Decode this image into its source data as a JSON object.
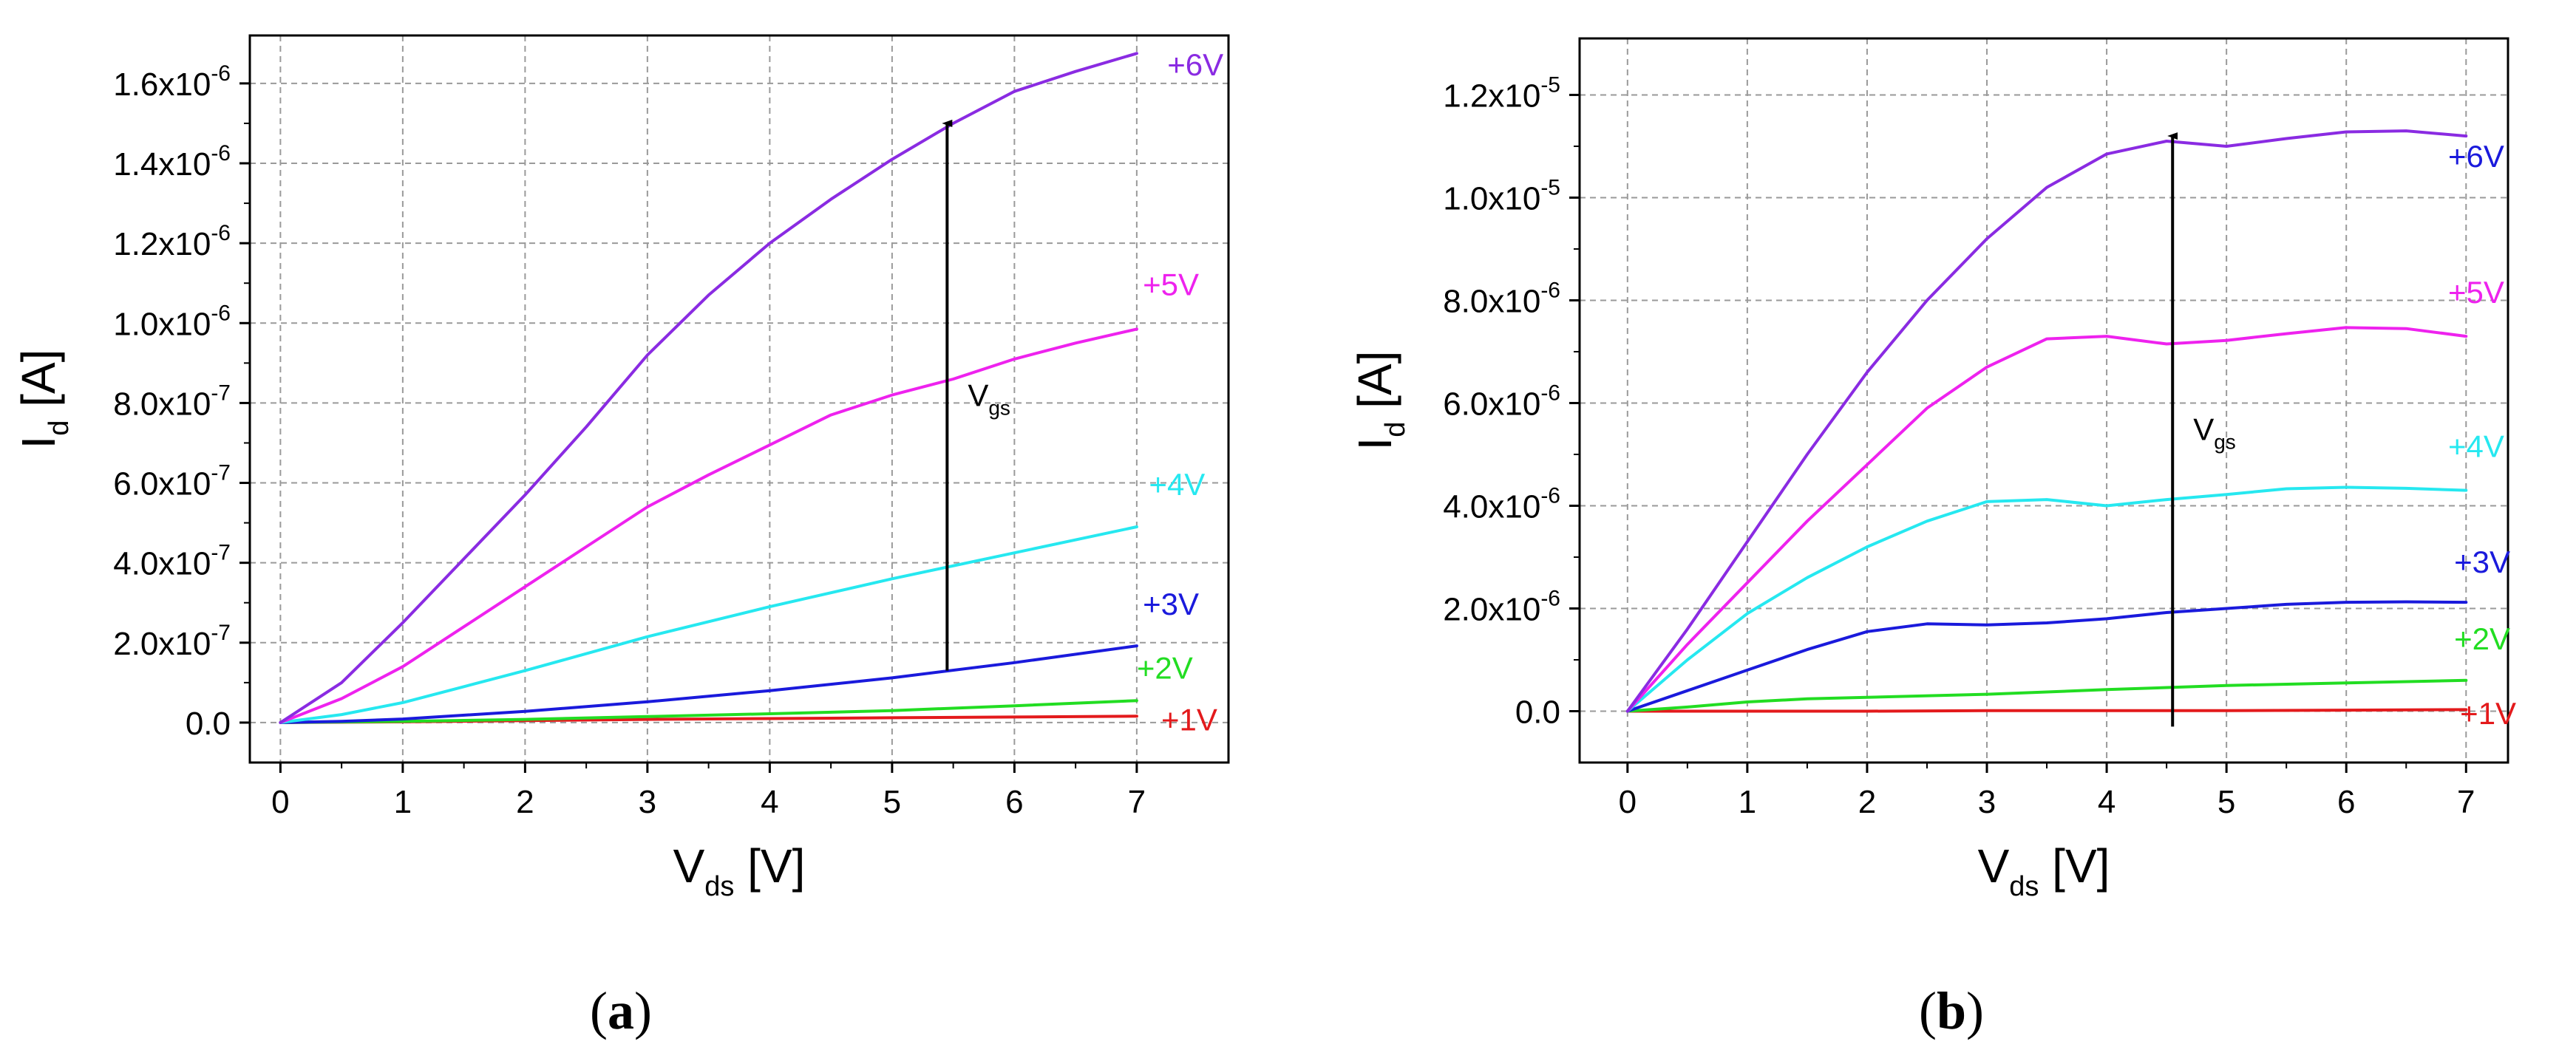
{
  "chart_data": [
    {
      "id": "a",
      "type": "line",
      "caption": "(a)",
      "xlabel": "V",
      "xlabel_sub": "ds",
      "xlabel_unit": " [V]",
      "ylabel": "I",
      "ylabel_sub": "d",
      "ylabel_unit": " [A]",
      "xlim": [
        -0.25,
        7.75
      ],
      "ylim": [
        -1e-07,
        1.72e-06
      ],
      "grid": true,
      "xticks": [
        0,
        1,
        2,
        3,
        4,
        5,
        6,
        7
      ],
      "yticks": [
        {
          "value": 0,
          "mant": "0.0",
          "exp": ""
        },
        {
          "value": 2e-07,
          "mant": "2.0x10",
          "exp": "-7"
        },
        {
          "value": 4e-07,
          "mant": "4.0x10",
          "exp": "-7"
        },
        {
          "value": 6e-07,
          "mant": "6.0x10",
          "exp": "-7"
        },
        {
          "value": 8e-07,
          "mant": "8.0x10",
          "exp": "-7"
        },
        {
          "value": 1e-06,
          "mant": "1.0x10",
          "exp": "-6"
        },
        {
          "value": 1.2e-06,
          "mant": "1.2x10",
          "exp": "-6"
        },
        {
          "value": 1.4e-06,
          "mant": "1.4x10",
          "exp": "-6"
        },
        {
          "value": 1.6e-06,
          "mant": "1.6x10",
          "exp": "-6"
        }
      ],
      "arrow": {
        "x": 5.45,
        "y_start": 1.3e-07,
        "y_end": 1.5e-06,
        "label": "V",
        "label_sub": "gs"
      },
      "series": [
        {
          "name": "+1V",
          "color": "#e31a1c",
          "label_pos": [
            7.2,
            -2e-08
          ],
          "x": [
            0,
            1,
            2,
            3,
            4,
            5,
            6,
            7
          ],
          "y": [
            0,
            2e-09,
            5e-09,
            8e-09,
            1e-08,
            1.2e-08,
            1.4e-08,
            1.6e-08
          ]
        },
        {
          "name": "+2V",
          "color": "#22dd22",
          "label_pos": [
            7.0,
            1.1e-07
          ],
          "x": [
            0,
            1,
            2,
            3,
            4,
            5,
            6,
            7
          ],
          "y": [
            0,
            3e-09,
            8e-09,
            1.5e-08,
            2.2e-08,
            3e-08,
            4.2e-08,
            5.5e-08
          ]
        },
        {
          "name": "+3V",
          "color": "#1a1adc",
          "label_pos": [
            7.05,
            2.7e-07
          ],
          "x": [
            0,
            0.5,
            1,
            2,
            3,
            4,
            5,
            6,
            7
          ],
          "y": [
            0,
            3e-09,
            9e-09,
            2.8e-08,
            5.2e-08,
            8e-08,
            1.12e-07,
            1.5e-07,
            1.92e-07
          ]
        },
        {
          "name": "+4V",
          "color": "#26e8f0",
          "label_pos": [
            7.1,
            5.7e-07
          ],
          "x": [
            0,
            0.5,
            1,
            1.5,
            2,
            3,
            4,
            5,
            6,
            7
          ],
          "y": [
            0,
            2e-08,
            5e-08,
            9e-08,
            1.3e-07,
            2.15e-07,
            2.9e-07,
            3.6e-07,
            4.25e-07,
            4.9e-07
          ]
        },
        {
          "name": "+5V",
          "color": "#ee22ee",
          "label_pos": [
            7.05,
            1.07e-06
          ],
          "x": [
            0,
            0.5,
            1,
            1.5,
            2,
            2.5,
            3,
            3.5,
            4,
            4.5,
            5,
            5.5,
            6,
            6.5,
            7
          ],
          "y": [
            0,
            6e-08,
            1.4e-07,
            2.4e-07,
            3.4e-07,
            4.4e-07,
            5.4e-07,
            6.2e-07,
            6.95e-07,
            7.7e-07,
            8.2e-07,
            8.6e-07,
            9.1e-07,
            9.5e-07,
            9.85e-07
          ]
        },
        {
          "name": "+6V",
          "color": "#8a2be2",
          "label_pos": [
            7.25,
            1.62e-06
          ],
          "x": [
            0,
            0.5,
            1,
            1.5,
            2,
            2.5,
            3,
            3.5,
            4,
            4.5,
            5,
            5.5,
            6,
            6.5,
            7
          ],
          "y": [
            0,
            1e-07,
            2.5e-07,
            4.1e-07,
            5.7e-07,
            7.4e-07,
            9.2e-07,
            1.07e-06,
            1.2e-06,
            1.31e-06,
            1.41e-06,
            1.5e-06,
            1.58e-06,
            1.63e-06,
            1.675e-06
          ]
        }
      ]
    },
    {
      "id": "b",
      "type": "line",
      "caption": "(b)",
      "xlabel": "V",
      "xlabel_sub": "ds",
      "xlabel_unit": " [V]",
      "ylabel": "I",
      "ylabel_sub": "d",
      "ylabel_unit": " [A]",
      "xlim": [
        -0.4,
        7.35
      ],
      "ylim": [
        -1e-06,
        1.31e-05
      ],
      "grid": true,
      "xticks": [
        0,
        1,
        2,
        3,
        4,
        5,
        6,
        7
      ],
      "yticks": [
        {
          "value": 0,
          "mant": "0.0",
          "exp": ""
        },
        {
          "value": 2e-06,
          "mant": "2.0x10",
          "exp": "-6"
        },
        {
          "value": 4e-06,
          "mant": "4.0x10",
          "exp": "-6"
        },
        {
          "value": 6e-06,
          "mant": "6.0x10",
          "exp": "-6"
        },
        {
          "value": 8e-06,
          "mant": "8.0x10",
          "exp": "-6"
        },
        {
          "value": 1e-05,
          "mant": "1.0x10",
          "exp": "-5"
        },
        {
          "value": 1.2e-05,
          "mant": "1.2x10",
          "exp": "-5"
        }
      ],
      "arrow": {
        "x": 4.55,
        "y_start": -3e-07,
        "y_end": 1.12e-05,
        "label": "V",
        "label_sub": "gs"
      },
      "series": [
        {
          "name": "+1V",
          "color": "#e31a1c",
          "label_pos": [
            6.95,
            -2.5e-07
          ],
          "x": [
            0,
            1,
            2,
            3,
            4,
            5,
            6,
            7
          ],
          "y": [
            0,
            0,
            0,
            1e-08,
            1e-08,
            1e-08,
            2e-08,
            3e-08
          ]
        },
        {
          "name": "+2V",
          "color": "#22dd22",
          "label_pos": [
            6.9,
            1.2e-06
          ],
          "x": [
            0,
            0.5,
            1,
            1.5,
            2,
            3,
            4,
            5,
            6,
            7
          ],
          "y": [
            0,
            8e-08,
            1.8e-07,
            2.4e-07,
            2.7e-07,
            3.3e-07,
            4.2e-07,
            5e-07,
            5.5e-07,
            6e-07
          ]
        },
        {
          "name": "+3V",
          "color": "#1a1adc",
          "label_pos": [
            6.9,
            2.7e-06
          ],
          "x": [
            0,
            0.5,
            1,
            1.5,
            2,
            2.5,
            3,
            3.5,
            4,
            4.5,
            5,
            5.5,
            6,
            6.5,
            7
          ],
          "y": [
            0,
            4e-07,
            8e-07,
            1.2e-06,
            1.55e-06,
            1.7e-06,
            1.68e-06,
            1.72e-06,
            1.8e-06,
            1.92e-06,
            2e-06,
            2.08e-06,
            2.12e-06,
            2.13e-06,
            2.12e-06
          ]
        },
        {
          "name": "+4V",
          "color": "#26e8f0",
          "label_pos": [
            6.85,
            4.95e-06
          ],
          "x": [
            0,
            0.5,
            1,
            1.5,
            2,
            2.5,
            3,
            3.5,
            4,
            4.5,
            5,
            5.5,
            6,
            6.5,
            7
          ],
          "y": [
            0,
            1e-06,
            1.9e-06,
            2.6e-06,
            3.2e-06,
            3.7e-06,
            4.08e-06,
            4.12e-06,
            4e-06,
            4.12e-06,
            4.22e-06,
            4.33e-06,
            4.36e-06,
            4.34e-06,
            4.3e-06
          ]
        },
        {
          "name": "+5V",
          "color": "#ee22ee",
          "label_pos": [
            6.85,
            7.95e-06
          ],
          "x": [
            0,
            0.5,
            1,
            1.5,
            2,
            2.5,
            3,
            3.5,
            4,
            4.5,
            5,
            5.5,
            6,
            6.5,
            7
          ],
          "y": [
            0,
            1.3e-06,
            2.5e-06,
            3.7e-06,
            4.8e-06,
            5.9e-06,
            6.7e-06,
            7.25e-06,
            7.3e-06,
            7.15e-06,
            7.22e-06,
            7.35e-06,
            7.47e-06,
            7.45e-06,
            7.3e-06
          ]
        },
        {
          "name": "+6V",
          "color": "#1a1adc",
          "stroke": "#8a2be2",
          "label_pos": [
            6.85,
            1.06e-05
          ],
          "x": [
            0,
            0.5,
            1,
            1.5,
            2,
            2.5,
            3,
            3.5,
            4,
            4.5,
            5,
            5.5,
            6,
            6.5,
            7
          ],
          "y": [
            0,
            1.6e-06,
            3.3e-06,
            5e-06,
            6.6e-06,
            8e-06,
            9.2e-06,
            1.02e-05,
            1.085e-05,
            1.11e-05,
            1.1e-05,
            1.115e-05,
            1.128e-05,
            1.13e-05,
            1.12e-05
          ]
        }
      ]
    }
  ]
}
